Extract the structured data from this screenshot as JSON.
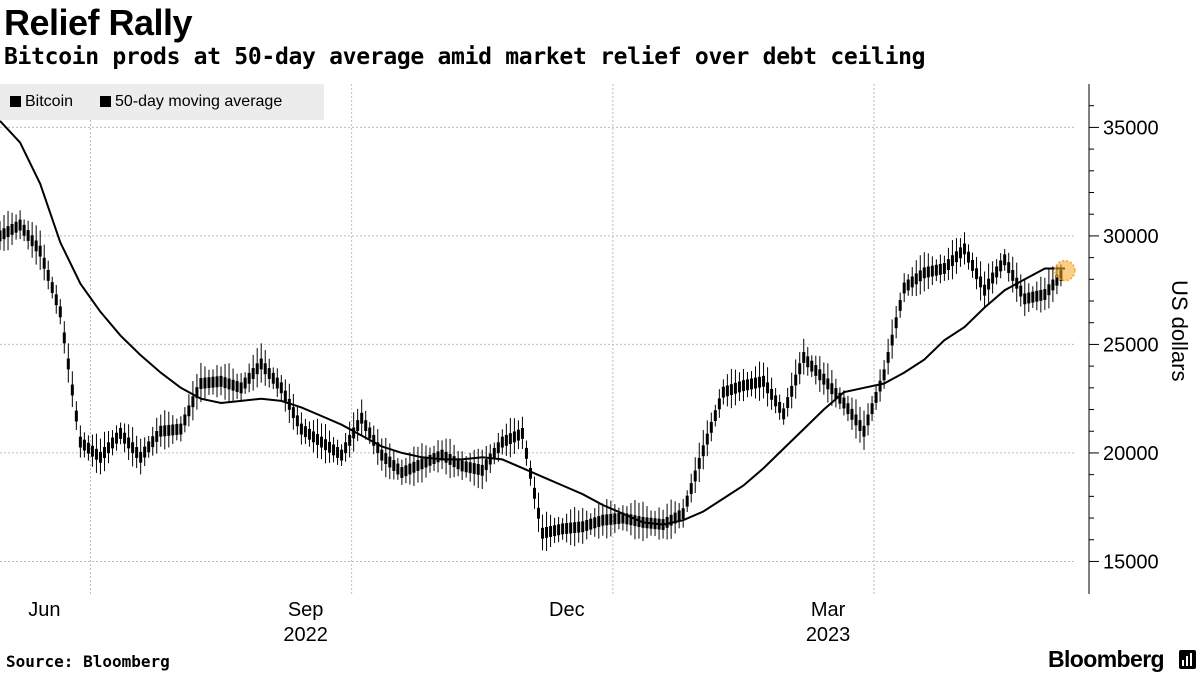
{
  "title": "Relief Rally",
  "subtitle": "Bitcoin prods at 50-day average amid market relief over debt ceiling",
  "source": "Source: Bloomberg",
  "brand": "Bloomberg",
  "colors": {
    "line": "#000000",
    "grid": "#bdbdbd",
    "legend_bg": "#ececec",
    "highlight": "#f5a623"
  },
  "chart_data": {
    "type": "line",
    "legend": [
      "Bitcoin",
      "50-day moving average"
    ],
    "ylabel": "US dollars",
    "ylim": [
      13500,
      37000
    ],
    "yticks": [
      15000,
      20000,
      25000,
      30000,
      35000
    ],
    "xlim": [
      0,
      53.5
    ],
    "x_ticks": [
      {
        "x": 4.5,
        "label": "Jun",
        "year": ""
      },
      {
        "x": 17.5,
        "label": "Sep",
        "year": "2022"
      },
      {
        "x": 30.5,
        "label": "Dec",
        "year": ""
      },
      {
        "x": 43.5,
        "label": "Mar",
        "year": "2023"
      }
    ],
    "x_grid": [
      4.5,
      17.5,
      30.5,
      43.5
    ],
    "series": [
      {
        "name": "Bitcoin",
        "style": "candles",
        "x": [
          0,
          1,
          2,
          3,
          4,
          5,
          6,
          7,
          8,
          9,
          10,
          11,
          12,
          13,
          14,
          15,
          16,
          17,
          18,
          19,
          20,
          21,
          22,
          23,
          24,
          25,
          26,
          27,
          28,
          29,
          30,
          31,
          32,
          33,
          34,
          35,
          36,
          37,
          38,
          39,
          40,
          41,
          42,
          43,
          44,
          45,
          46,
          47,
          48,
          49,
          50,
          51,
          52,
          53
        ],
        "values": [
          30000,
          30500,
          29300,
          26500,
          20500,
          19800,
          20900,
          19800,
          21000,
          21100,
          23200,
          23300,
          23000,
          24100,
          23000,
          21100,
          20500,
          19900,
          21600,
          19900,
          19100,
          19500,
          19900,
          19400,
          19200,
          20500,
          20900,
          16300,
          16500,
          16600,
          16900,
          17000,
          16800,
          16700,
          17200,
          20100,
          22800,
          23100,
          23300,
          21800,
          24400,
          23400,
          22300,
          21000,
          23600,
          27600,
          28300,
          28500,
          29400,
          27500,
          28900,
          27100,
          27300,
          28400
        ]
      },
      {
        "name": "50-day moving average",
        "style": "line",
        "x": [
          0,
          1,
          2,
          3,
          4,
          5,
          6,
          7,
          8,
          9,
          10,
          11,
          12,
          13,
          14,
          15,
          16,
          17,
          18,
          19,
          20,
          21,
          22,
          23,
          24,
          25,
          26,
          27,
          28,
          29,
          30,
          31,
          32,
          33,
          34,
          35,
          36,
          37,
          38,
          39,
          40,
          41,
          42,
          43,
          44,
          45,
          46,
          47,
          48,
          49,
          50,
          51,
          52,
          53
        ],
        "values": [
          35300,
          34300,
          32400,
          29700,
          27800,
          26500,
          25400,
          24500,
          23700,
          23000,
          22500,
          22300,
          22400,
          22500,
          22400,
          22100,
          21700,
          21300,
          20800,
          20300,
          20000,
          19800,
          19700,
          19700,
          19800,
          19700,
          19300,
          18900,
          18500,
          18100,
          17600,
          17200,
          16800,
          16700,
          16900,
          17300,
          17900,
          18500,
          19300,
          20200,
          21100,
          22000,
          22800,
          23000,
          23200,
          23700,
          24300,
          25200,
          25800,
          26700,
          27500,
          28000,
          28500,
          28500
        ]
      }
    ],
    "annotations": [
      {
        "type": "marker",
        "x": 53,
        "y": 28400
      }
    ]
  }
}
